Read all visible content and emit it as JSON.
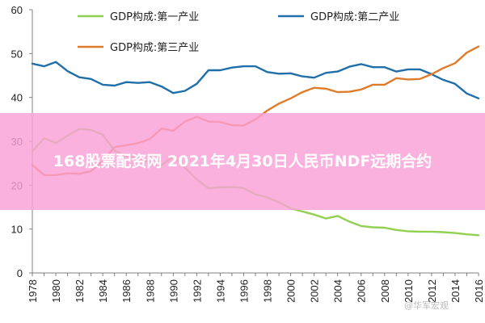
{
  "chart_data": {
    "type": "line",
    "title": "",
    "xlabel": "",
    "ylabel": "",
    "ylim": [
      0,
      60
    ],
    "yticks": [
      0,
      10,
      20,
      30,
      40,
      50,
      60
    ],
    "xlim": [
      1978,
      2016
    ],
    "xticks": [
      1978,
      1980,
      1982,
      1984,
      1986,
      1988,
      1990,
      1992,
      1994,
      1996,
      1998,
      2000,
      2002,
      2004,
      2006,
      2008,
      2010,
      2012,
      2014,
      2016
    ],
    "grid": false,
    "legend": "top",
    "x": [
      1978,
      1979,
      1980,
      1981,
      1982,
      1983,
      1984,
      1985,
      1986,
      1987,
      1988,
      1989,
      1990,
      1991,
      1992,
      1993,
      1994,
      1995,
      1996,
      1997,
      1998,
      1999,
      2000,
      2001,
      2002,
      2003,
      2004,
      2005,
      2006,
      2007,
      2008,
      2009,
      2010,
      2011,
      2012,
      2013,
      2014,
      2015,
      2016
    ],
    "series": [
      {
        "name": "GDP构成:第一产业",
        "color": "#92d050",
        "values": [
          27.7,
          30.7,
          29.6,
          31.3,
          32.8,
          32.6,
          31.5,
          27.9,
          26.6,
          26.3,
          25.2,
          24.6,
          26.6,
          24.0,
          21.3,
          19.3,
          19.5,
          19.6,
          19.3,
          17.9,
          17.2,
          16.1,
          14.7,
          14.0,
          13.3,
          12.4,
          13.0,
          11.7,
          10.7,
          10.4,
          10.3,
          9.8,
          9.5,
          9.4,
          9.4,
          9.3,
          9.1,
          8.8,
          8.6
        ]
      },
      {
        "name": "GDP构成:第二产业",
        "color": "#1f6fa8",
        "values": [
          47.7,
          47.1,
          48.1,
          46.0,
          44.6,
          44.2,
          42.9,
          42.7,
          43.5,
          43.3,
          43.5,
          42.5,
          41.0,
          41.5,
          43.1,
          46.2,
          46.2,
          46.8,
          47.1,
          47.1,
          45.8,
          45.4,
          45.5,
          44.8,
          44.5,
          45.6,
          45.9,
          47.0,
          47.6,
          46.9,
          46.9,
          45.9,
          46.4,
          46.4,
          45.3,
          44.0,
          43.1,
          40.9,
          39.8
        ]
      },
      {
        "name": "GDP构成:第三产业",
        "color": "#e07b2a",
        "values": [
          24.6,
          22.3,
          22.3,
          22.7,
          22.6,
          23.2,
          25.5,
          28.7,
          29.1,
          29.6,
          30.5,
          32.9,
          32.4,
          34.5,
          35.6,
          34.5,
          34.4,
          33.7,
          33.6,
          35.0,
          37.0,
          38.6,
          39.8,
          41.2,
          42.2,
          42.0,
          41.2,
          41.3,
          41.8,
          42.9,
          42.9,
          44.4,
          44.1,
          44.2,
          45.3,
          46.7,
          47.8,
          50.2,
          51.6
        ]
      }
    ]
  },
  "banner": {
    "text": "168股票配资网 2021年4月30日人民币NDF远期合约"
  },
  "watermark": {
    "text": "@华军宏观"
  }
}
